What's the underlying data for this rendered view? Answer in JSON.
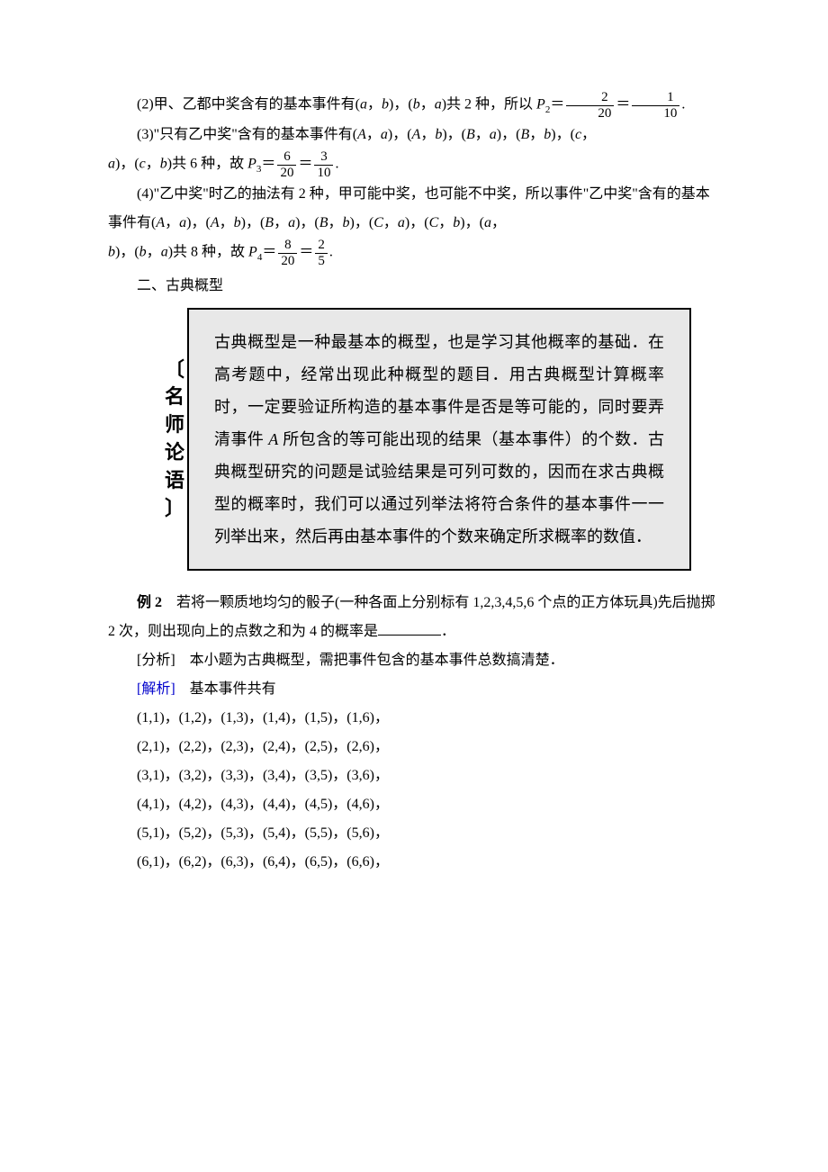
{
  "p1_a": "(2)甲、乙都中奖含有的基本事件有(",
  "p1_b": "，",
  "p1_c": ")，(",
  "p1_d": "，",
  "p1_e": ")共 2 种，所以 ",
  "p1_f": "＝",
  "p1_g": "＝",
  "p1_h": ".",
  "frac1_n": "2",
  "frac1_d": "20",
  "frac2_n": "1",
  "frac2_d": "10",
  "var_a": "a",
  "var_b": "b",
  "var_P": "P",
  "p2_a": "(3)\"只有乙中奖\"含有的基本事件有(",
  "p2_b": "，",
  "p2_c": ")，(",
  "p2_d": "，",
  "p2_e": ")，(",
  "p2_f": "，",
  "p2_g": ")，(",
  "p2_h": "，",
  "p2_i": ")，(",
  "p2_j": "，",
  "var_A": "A",
  "var_B": "B",
  "var_c": "c",
  "p3_a": ")，(",
  "p3_b": "，",
  "p3_c": ")共 6 种，故 ",
  "p3_d": "＝",
  "p3_e": "＝",
  "p3_f": ".",
  "frac3_n": "6",
  "frac3_d": "20",
  "frac4_n": "3",
  "frac4_d": "10",
  "p4_a": "(4)\"乙中奖\"时乙的抽法有 2 种，甲可能中奖，也可能不中奖，所以事件\"乙中奖\"含有的基本事件有(",
  "p4_b": "，",
  "p4_c": ")，(",
  "p4_d": "，",
  "p4_e": ")，(",
  "p4_f": "，",
  "p4_g": ")，(",
  "p4_h": "，",
  "p4_i": ")，(",
  "p4_j": "，",
  "p4_k": ")，(",
  "p4_l": "，",
  "p4_m": ")，(",
  "p4_n": "，",
  "var_C": "C",
  "p5_a": ")，(",
  "p5_b": "，",
  "p5_c": ")共 8 种，故 ",
  "p5_d": "＝",
  "p5_e": "＝",
  "p5_f": ".",
  "frac5_n": "8",
  "frac5_d": "20",
  "frac6_n": "2",
  "frac6_d": "5",
  "section": "二、古典概型",
  "box_label": "名师论语",
  "box_text_a": "古典概型是一种最基本的概型，也是学习其他概率的基础．在高考题中，经常出现此种概型的题目．用古典概型计算概率时，一定要验证所构造的基本事件是否是等可能的，同时要弄清事件 ",
  "box_text_b": " 所包含的等可能出现的结果（基本事件）的个数．古典概型研究的问题是试验结果是可列可数的，因而在求古典概型的概率时，我们可以通过列举法将符合条件的基本事件一一列举出来，然后再由基本事件的个数来确定所求概率的数值．",
  "ex_label": "例 2",
  "ex_text_a": "　若将一颗质地均匀的骰子(一种各面上分别标有 1,2,3,4,5,6 个点的正方体玩具)先后抛掷 2 次，则出现向上的点数之和为 4 的概率是",
  "ex_text_b": "．",
  "analysis_label": "[分析]",
  "analysis_text": "　本小题为古典概型，需把事件包含的基本事件总数搞清楚．",
  "sol_label": "[解析]",
  "sol_text": "　基本事件共有",
  "rows": [
    "(1,1)，(1,2)，(1,3)，(1,4)，(1,5)，(1,6)，",
    "(2,1)，(2,2)，(2,3)，(2,4)，(2,5)，(2,6)，",
    "(3,1)，(3,2)，(3,3)，(3,4)，(3,5)，(3,6)，",
    "(4,1)，(4,2)，(4,3)，(4,4)，(4,5)，(4,6)，",
    "(5,1)，(5,2)，(5,3)，(5,4)，(5,5)，(5,6)，",
    "(6,1)，(6,2)，(6,3)，(6,4)，(6,5)，(6,6)，"
  ],
  "sub2": "2",
  "sub3": "3",
  "sub4": "4",
  "colors": {
    "text": "#000000",
    "background": "#ffffff",
    "box_bg": "#e8e8e8",
    "blue": "#0000cc"
  },
  "typography": {
    "body_font": "SimSun",
    "body_size_pt": 12,
    "box_font": "KaiTi",
    "box_size_pt": 14,
    "line_height": 2.0
  }
}
